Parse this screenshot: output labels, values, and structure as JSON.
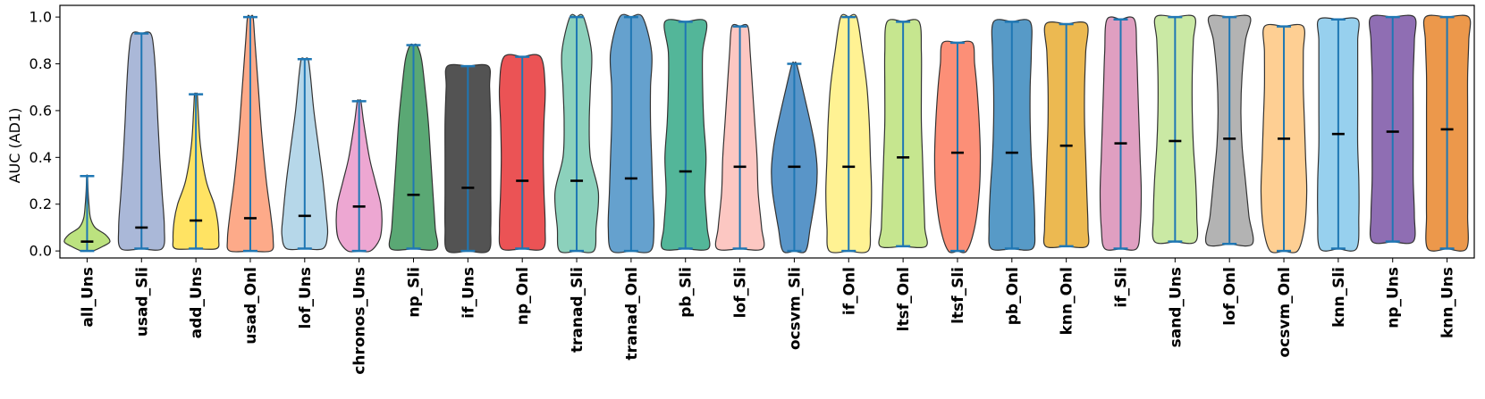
{
  "chart_data": {
    "type": "violin",
    "ylabel": "AUC (AD1)",
    "ylim": [
      -0.03,
      1.05
    ],
    "yticks": [
      0.0,
      0.2,
      0.4,
      0.6,
      0.8,
      1.0
    ],
    "ytick_labels": [
      "0.0",
      "0.2",
      "0.4",
      "0.6",
      "0.8",
      "1.0"
    ],
    "grid": false,
    "legend": "none",
    "categories": [
      "all_Uns",
      "usad_Sli",
      "add_Uns",
      "usad_Onl",
      "lof_Uns",
      "chronos_Uns",
      "np_Sli",
      "if_Uns",
      "np_Onl",
      "tranad_Sli",
      "tranad_Onl",
      "pb_Sli",
      "lof_Sli",
      "ocsvm_Sli",
      "if_Onl",
      "ltsf_Onl",
      "ltsf_Sli",
      "pb_Onl",
      "knn_Onl",
      "if_Sli",
      "sand_Uns",
      "lof_Onl",
      "ocsvm_Onl",
      "knn_Sli",
      "np_Uns",
      "knn_Uns"
    ],
    "medians": [
      0.04,
      0.1,
      0.13,
      0.14,
      0.15,
      0.19,
      0.24,
      0.27,
      0.3,
      0.3,
      0.31,
      0.34,
      0.36,
      0.36,
      0.36,
      0.4,
      0.42,
      0.42,
      0.45,
      0.46,
      0.47,
      0.48,
      0.48,
      0.5,
      0.51,
      0.52
    ],
    "mins": [
      0.0,
      0.01,
      0.01,
      0.0,
      0.01,
      0.0,
      0.01,
      0.0,
      0.01,
      0.0,
      0.0,
      0.01,
      0.01,
      0.0,
      0.0,
      0.02,
      0.0,
      0.01,
      0.02,
      0.01,
      0.04,
      0.03,
      0.0,
      0.01,
      0.04,
      0.01
    ],
    "maxs": [
      0.32,
      0.93,
      0.67,
      1.0,
      0.82,
      0.64,
      0.88,
      0.79,
      0.83,
      1.0,
      1.0,
      0.98,
      0.96,
      0.8,
      1.0,
      0.98,
      0.89,
      0.98,
      0.97,
      0.99,
      1.0,
      1.0,
      0.96,
      0.99,
      1.0,
      1.0
    ],
    "colors": [
      "#a6d854",
      "#8da0cb",
      "#ffd92f",
      "#fc8d62",
      "#9ecae1",
      "#e78ac3",
      "#238b45",
      "#1a1a1a",
      "#e41a1c",
      "#66c2a5",
      "#3182bd",
      "#1a9e77",
      "#fbb4ae",
      "#2171b5",
      "#ffed6f",
      "#b3de69",
      "#fb6a4a",
      "#1f78b4",
      "#e6a117",
      "#d47fac",
      "#b8e186",
      "#999999",
      "#fdbf6f",
      "#74c0e8",
      "#6a3d9a",
      "#e6750f"
    ],
    "shapes": [
      [
        [
          0.0,
          0.25
        ],
        [
          0.02,
          0.7
        ],
        [
          0.04,
          1.0
        ],
        [
          0.07,
          0.8
        ],
        [
          0.1,
          0.35
        ],
        [
          0.14,
          0.15
        ],
        [
          0.2,
          0.08
        ],
        [
          0.26,
          0.04
        ],
        [
          0.32,
          0.02
        ]
      ],
      [
        [
          0.01,
          0.9
        ],
        [
          0.1,
          1.0
        ],
        [
          0.25,
          0.9
        ],
        [
          0.4,
          0.8
        ],
        [
          0.55,
          0.72
        ],
        [
          0.7,
          0.65
        ],
        [
          0.85,
          0.55
        ],
        [
          0.93,
          0.4
        ]
      ],
      [
        [
          0.01,
          0.9
        ],
        [
          0.05,
          1.0
        ],
        [
          0.13,
          0.95
        ],
        [
          0.2,
          0.8
        ],
        [
          0.3,
          0.45
        ],
        [
          0.45,
          0.2
        ],
        [
          0.6,
          0.1
        ],
        [
          0.67,
          0.06
        ]
      ],
      [
        [
          0.0,
          0.9
        ],
        [
          0.05,
          1.0
        ],
        [
          0.15,
          0.9
        ],
        [
          0.3,
          0.7
        ],
        [
          0.5,
          0.5
        ],
        [
          0.7,
          0.35
        ],
        [
          0.9,
          0.2
        ],
        [
          1.0,
          0.12
        ]
      ],
      [
        [
          0.01,
          0.8
        ],
        [
          0.07,
          1.0
        ],
        [
          0.15,
          0.95
        ],
        [
          0.3,
          0.8
        ],
        [
          0.45,
          0.6
        ],
        [
          0.6,
          0.4
        ],
        [
          0.75,
          0.25
        ],
        [
          0.82,
          0.15
        ]
      ],
      [
        [
          0.0,
          0.5
        ],
        [
          0.05,
          0.9
        ],
        [
          0.12,
          1.0
        ],
        [
          0.2,
          0.95
        ],
        [
          0.3,
          0.7
        ],
        [
          0.4,
          0.45
        ],
        [
          0.55,
          0.2
        ],
        [
          0.64,
          0.08
        ]
      ],
      [
        [
          0.01,
          1.0
        ],
        [
          0.1,
          0.95
        ],
        [
          0.25,
          0.85
        ],
        [
          0.4,
          0.75
        ],
        [
          0.55,
          0.65
        ],
        [
          0.7,
          0.5
        ],
        [
          0.82,
          0.35
        ],
        [
          0.88,
          0.15
        ]
      ],
      [
        [
          0.0,
          0.9
        ],
        [
          0.1,
          1.0
        ],
        [
          0.25,
          1.0
        ],
        [
          0.4,
          1.0
        ],
        [
          0.55,
          1.0
        ],
        [
          0.7,
          0.95
        ],
        [
          0.79,
          0.9
        ]
      ],
      [
        [
          0.01,
          0.9
        ],
        [
          0.1,
          1.0
        ],
        [
          0.25,
          0.95
        ],
        [
          0.4,
          0.92
        ],
        [
          0.55,
          0.95
        ],
        [
          0.7,
          1.0
        ],
        [
          0.83,
          0.8
        ]
      ],
      [
        [
          0.0,
          0.75
        ],
        [
          0.1,
          0.85
        ],
        [
          0.25,
          0.95
        ],
        [
          0.4,
          0.6
        ],
        [
          0.55,
          0.55
        ],
        [
          0.7,
          0.6
        ],
        [
          0.85,
          0.65
        ],
        [
          1.0,
          0.3
        ]
      ],
      [
        [
          0.0,
          0.85
        ],
        [
          0.1,
          1.0
        ],
        [
          0.25,
          0.95
        ],
        [
          0.4,
          0.9
        ],
        [
          0.55,
          0.85
        ],
        [
          0.7,
          0.85
        ],
        [
          0.85,
          0.9
        ],
        [
          1.0,
          0.5
        ]
      ],
      [
        [
          0.01,
          1.0
        ],
        [
          0.1,
          0.95
        ],
        [
          0.25,
          0.85
        ],
        [
          0.4,
          0.9
        ],
        [
          0.55,
          0.8
        ],
        [
          0.7,
          0.75
        ],
        [
          0.85,
          0.75
        ],
        [
          0.98,
          0.9
        ]
      ],
      [
        [
          0.01,
          1.0
        ],
        [
          0.1,
          0.95
        ],
        [
          0.25,
          0.8
        ],
        [
          0.4,
          0.75
        ],
        [
          0.55,
          0.65
        ],
        [
          0.7,
          0.55
        ],
        [
          0.85,
          0.45
        ],
        [
          0.96,
          0.35
        ]
      ],
      [
        [
          0.0,
          0.5
        ],
        [
          0.1,
          0.7
        ],
        [
          0.25,
          0.95
        ],
        [
          0.35,
          1.0
        ],
        [
          0.45,
          0.9
        ],
        [
          0.55,
          0.7
        ],
        [
          0.7,
          0.35
        ],
        [
          0.8,
          0.1
        ]
      ],
      [
        [
          0.0,
          0.85
        ],
        [
          0.1,
          0.95
        ],
        [
          0.25,
          1.0
        ],
        [
          0.4,
          0.95
        ],
        [
          0.55,
          0.9
        ],
        [
          0.7,
          0.8
        ],
        [
          0.85,
          0.6
        ],
        [
          1.0,
          0.35
        ]
      ],
      [
        [
          0.02,
          1.0
        ],
        [
          0.1,
          0.95
        ],
        [
          0.25,
          0.9
        ],
        [
          0.4,
          0.85
        ],
        [
          0.55,
          0.8
        ],
        [
          0.7,
          0.8
        ],
        [
          0.85,
          0.8
        ],
        [
          0.98,
          0.7
        ]
      ],
      [
        [
          0.0,
          0.4
        ],
        [
          0.1,
          0.75
        ],
        [
          0.25,
          0.95
        ],
        [
          0.4,
          1.0
        ],
        [
          0.55,
          0.95
        ],
        [
          0.7,
          0.85
        ],
        [
          0.8,
          0.75
        ],
        [
          0.89,
          0.65
        ]
      ],
      [
        [
          0.01,
          0.9
        ],
        [
          0.1,
          1.0
        ],
        [
          0.25,
          0.95
        ],
        [
          0.4,
          0.85
        ],
        [
          0.55,
          0.8
        ],
        [
          0.7,
          0.8
        ],
        [
          0.85,
          0.85
        ],
        [
          0.98,
          0.8
        ]
      ],
      [
        [
          0.02,
          0.9
        ],
        [
          0.1,
          0.95
        ],
        [
          0.25,
          0.9
        ],
        [
          0.4,
          0.85
        ],
        [
          0.55,
          0.8
        ],
        [
          0.7,
          0.8
        ],
        [
          0.85,
          0.85
        ],
        [
          0.97,
          0.9
        ]
      ],
      [
        [
          0.01,
          0.7
        ],
        [
          0.1,
          0.85
        ],
        [
          0.25,
          0.9
        ],
        [
          0.4,
          0.85
        ],
        [
          0.55,
          0.8
        ],
        [
          0.7,
          0.75
        ],
        [
          0.85,
          0.7
        ],
        [
          0.99,
          0.6
        ]
      ],
      [
        [
          0.04,
          0.9
        ],
        [
          0.15,
          0.95
        ],
        [
          0.3,
          0.9
        ],
        [
          0.45,
          0.8
        ],
        [
          0.6,
          0.75
        ],
        [
          0.75,
          0.75
        ],
        [
          0.9,
          0.8
        ],
        [
          1.0,
          0.85
        ]
      ],
      [
        [
          0.03,
          1.0
        ],
        [
          0.15,
          0.85
        ],
        [
          0.3,
          0.7
        ],
        [
          0.45,
          0.55
        ],
        [
          0.6,
          0.5
        ],
        [
          0.75,
          0.55
        ],
        [
          0.9,
          0.7
        ],
        [
          1.0,
          0.9
        ]
      ],
      [
        [
          0.0,
          0.6
        ],
        [
          0.1,
          0.9
        ],
        [
          0.25,
          1.0
        ],
        [
          0.4,
          0.95
        ],
        [
          0.55,
          0.9
        ],
        [
          0.7,
          0.85
        ],
        [
          0.85,
          0.85
        ],
        [
          0.96,
          0.85
        ]
      ],
      [
        [
          0.01,
          0.8
        ],
        [
          0.15,
          0.9
        ],
        [
          0.3,
          0.9
        ],
        [
          0.45,
          0.85
        ],
        [
          0.6,
          0.85
        ],
        [
          0.75,
          0.85
        ],
        [
          0.9,
          0.85
        ],
        [
          0.99,
          0.85
        ]
      ],
      [
        [
          0.04,
          0.9
        ],
        [
          0.15,
          0.95
        ],
        [
          0.3,
          0.9
        ],
        [
          0.45,
          0.9
        ],
        [
          0.6,
          0.9
        ],
        [
          0.75,
          0.9
        ],
        [
          0.9,
          0.95
        ],
        [
          1.0,
          0.95
        ]
      ],
      [
        [
          0.01,
          0.85
        ],
        [
          0.15,
          0.9
        ],
        [
          0.3,
          0.9
        ],
        [
          0.45,
          0.9
        ],
        [
          0.6,
          0.9
        ],
        [
          0.75,
          0.9
        ],
        [
          0.9,
          0.95
        ],
        [
          1.0,
          0.95
        ]
      ]
    ]
  }
}
